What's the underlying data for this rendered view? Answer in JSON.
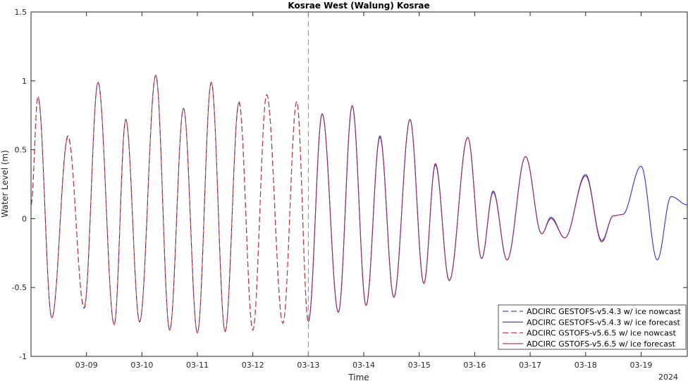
{
  "chart_data": {
    "type": "line",
    "title": "Kosrae West (Walung) Kosrae",
    "xlabel": "Time",
    "ylabel": "Water Level (m)",
    "year_label": "2024",
    "ylim": [
      -1,
      1.5
    ],
    "xlim": [
      "03-08 00:00",
      "03-19 20:00"
    ],
    "y_ticks": [
      -1,
      -0.5,
      0,
      0.5,
      1,
      1.5
    ],
    "y_tick_labels": [
      "-1",
      "-0.5",
      "0",
      "0.5",
      "1",
      "1.5"
    ],
    "x_ticks": [
      "03-09",
      "03-10",
      "03-11",
      "03-12",
      "03-13",
      "03-14",
      "03-15",
      "03-16",
      "03-17",
      "03-18",
      "03-19"
    ],
    "nowcast_end": "03-13",
    "grid": false,
    "legend_position": "bottom-right",
    "series": [
      {
        "name": "ADCIRC GESTOFS-v5.4.3 w/ ice nowcast",
        "color": "#1f1fa8",
        "style": "dashed",
        "points": [
          [
            "03-08 00:00",
            0.1
          ],
          [
            "03-08 03:00",
            0.88
          ],
          [
            "03-08 09:00",
            -0.72
          ],
          [
            "03-08 16:00",
            0.6
          ],
          [
            "03-08 23:00",
            -0.65
          ],
          [
            "03-09 05:00",
            0.99
          ],
          [
            "03-09 12:00",
            -0.77
          ],
          [
            "03-09 17:00",
            0.72
          ],
          [
            "03-09 23:00",
            -0.75
          ],
          [
            "03-10 06:00",
            1.04
          ],
          [
            "03-10 12:00",
            -0.81
          ],
          [
            "03-10 18:00",
            0.8
          ],
          [
            "03-11 00:00",
            -0.83
          ],
          [
            "03-11 06:00",
            0.99
          ],
          [
            "03-11 12:00",
            -0.82
          ],
          [
            "03-11 18:00",
            0.84
          ],
          [
            "03-12 00:00",
            -0.81
          ],
          [
            "03-12 06:00",
            0.9
          ],
          [
            "03-12 13:00",
            -0.76
          ],
          [
            "03-12 19:00",
            0.85
          ],
          [
            "03-13 00:00",
            -0.75
          ]
        ]
      },
      {
        "name": "ADCIRC GESTOFS-v5.4.3 w/ ice forecast",
        "color": "#2d2de0",
        "style": "solid",
        "points": [
          [
            "03-13 00:00",
            -0.75
          ],
          [
            "03-13 06:00",
            0.76
          ],
          [
            "03-13 13:00",
            -0.68
          ],
          [
            "03-13 19:00",
            0.82
          ],
          [
            "03-14 01:00",
            -0.63
          ],
          [
            "03-14 07:00",
            0.6
          ],
          [
            "03-14 13:00",
            -0.57
          ],
          [
            "03-14 20:00",
            0.72
          ],
          [
            "03-15 02:00",
            -0.47
          ],
          [
            "03-15 07:00",
            0.39
          ],
          [
            "03-15 13:00",
            -0.45
          ],
          [
            "03-15 21:00",
            0.59
          ],
          [
            "03-16 03:00",
            -0.29
          ],
          [
            "03-16 08:00",
            0.2
          ],
          [
            "03-16 14:00",
            -0.3
          ],
          [
            "03-16 22:00",
            0.45
          ],
          [
            "03-17 05:00",
            -0.11
          ],
          [
            "03-17 09:00",
            0.01
          ],
          [
            "03-17 15:00",
            -0.14
          ],
          [
            "03-18 00:00",
            0.32
          ],
          [
            "03-18 07:00",
            -0.16
          ],
          [
            "03-18 12:00",
            0.02
          ],
          [
            "03-18 16:00",
            0.03
          ],
          [
            "03-19 00:00",
            0.38
          ],
          [
            "03-19 07:00",
            -0.3
          ],
          [
            "03-19 13:00",
            0.16
          ],
          [
            "03-19 20:00",
            0.1
          ]
        ]
      },
      {
        "name": "ADCIRC GSTOFS-v5.6.5 w/ ice nowcast",
        "color": "#d43a3a",
        "style": "dashed",
        "points": [
          [
            "03-08 00:00",
            0.1
          ],
          [
            "03-08 03:00",
            0.89
          ],
          [
            "03-08 09:00",
            -0.72
          ],
          [
            "03-08 16:00",
            0.59
          ],
          [
            "03-08 23:00",
            -0.64
          ],
          [
            "03-09 05:00",
            0.99
          ],
          [
            "03-09 12:00",
            -0.77
          ],
          [
            "03-09 17:00",
            0.72
          ],
          [
            "03-09 23:00",
            -0.75
          ],
          [
            "03-10 06:00",
            1.04
          ],
          [
            "03-10 12:00",
            -0.81
          ],
          [
            "03-10 18:00",
            0.8
          ],
          [
            "03-11 00:00",
            -0.83
          ],
          [
            "03-11 06:00",
            0.99
          ],
          [
            "03-11 12:00",
            -0.82
          ],
          [
            "03-11 18:00",
            0.85
          ],
          [
            "03-12 00:00",
            -0.81
          ],
          [
            "03-12 06:00",
            0.9
          ],
          [
            "03-12 13:00",
            -0.76
          ],
          [
            "03-12 19:00",
            0.85
          ],
          [
            "03-13 00:00",
            -0.75
          ]
        ]
      },
      {
        "name": "ADCIRC GSTOFS-v5.6.5 w/ ice forecast",
        "color": "#a02a5a",
        "style": "solid",
        "points": [
          [
            "03-13 00:00",
            -0.75
          ],
          [
            "03-13 06:00",
            0.76
          ],
          [
            "03-13 13:00",
            -0.68
          ],
          [
            "03-13 19:00",
            0.82
          ],
          [
            "03-14 01:00",
            -0.63
          ],
          [
            "03-14 07:00",
            0.59
          ],
          [
            "03-14 13:00",
            -0.57
          ],
          [
            "03-14 20:00",
            0.72
          ],
          [
            "03-15 02:00",
            -0.47
          ],
          [
            "03-15 07:00",
            0.4
          ],
          [
            "03-15 13:00",
            -0.45
          ],
          [
            "03-15 21:00",
            0.59
          ],
          [
            "03-16 03:00",
            -0.29
          ],
          [
            "03-16 08:00",
            0.19
          ],
          [
            "03-16 14:00",
            -0.3
          ],
          [
            "03-16 22:00",
            0.45
          ],
          [
            "03-17 05:00",
            -0.11
          ],
          [
            "03-17 09:00",
            0.0
          ],
          [
            "03-17 15:00",
            -0.14
          ],
          [
            "03-18 00:00",
            0.31
          ],
          [
            "03-18 07:00",
            -0.17
          ],
          [
            "03-18 12:00",
            0.02
          ],
          [
            "03-18 16:00",
            0.03
          ]
        ]
      }
    ]
  }
}
